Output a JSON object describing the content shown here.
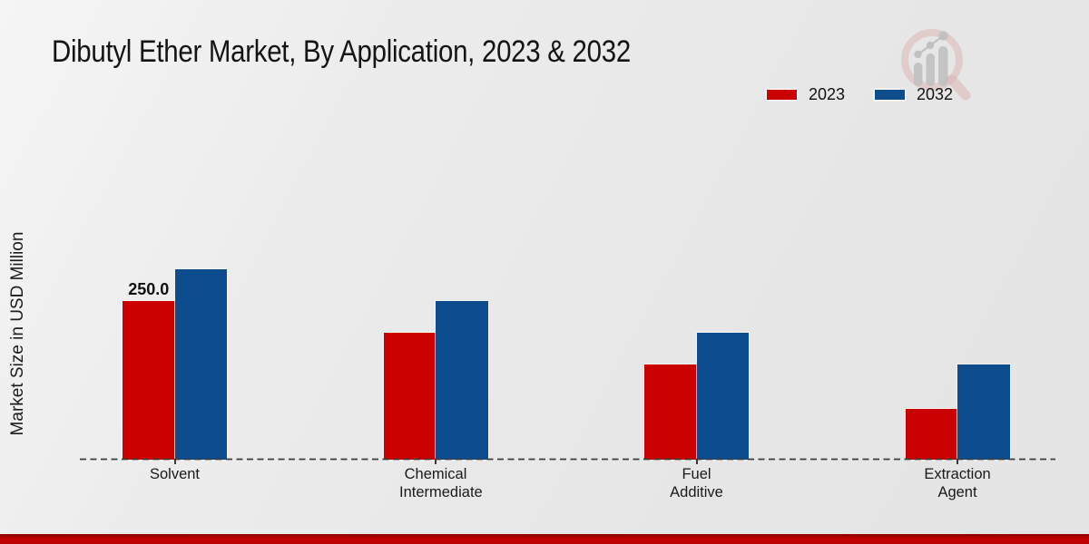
{
  "header": {
    "title": "Dibutyl Ether Market, By Application, 2023 & 2032"
  },
  "axis": {
    "ylabel": "Market Size in USD Million"
  },
  "legend": {
    "items": [
      {
        "label": "2023",
        "color": "#cb0001"
      },
      {
        "label": "2032",
        "color": "#0d4d8d"
      }
    ]
  },
  "watermark": {
    "name": "magnifier-bar-chart-brand-logo",
    "ring_color": "#d9adad",
    "bars_color": "#bcbcbc"
  },
  "footer": {
    "accent_color": "#c10001"
  },
  "chart_data": {
    "type": "bar",
    "title": "Dibutyl Ether Market, By Application, 2023 & 2032",
    "xlabel": "",
    "ylabel": "Market Size in USD Million",
    "categories": [
      "Solvent",
      "Chemical Intermediate",
      "Fuel Additive",
      "Extraction Agent"
    ],
    "series": [
      {
        "name": "2023",
        "color": "#cb0001",
        "values": [
          250.0,
          200,
          150,
          80
        ]
      },
      {
        "name": "2032",
        "color": "#0d4d8d",
        "values": [
          300,
          250,
          200,
          150
        ]
      }
    ],
    "annotations": [
      {
        "series_index": 0,
        "category_index": 0,
        "text": "250.0"
      }
    ],
    "ylim": [
      0,
      350
    ],
    "grid": false,
    "baseline_style": "dashed",
    "legend_position": "top-right",
    "units": "USD Million"
  }
}
